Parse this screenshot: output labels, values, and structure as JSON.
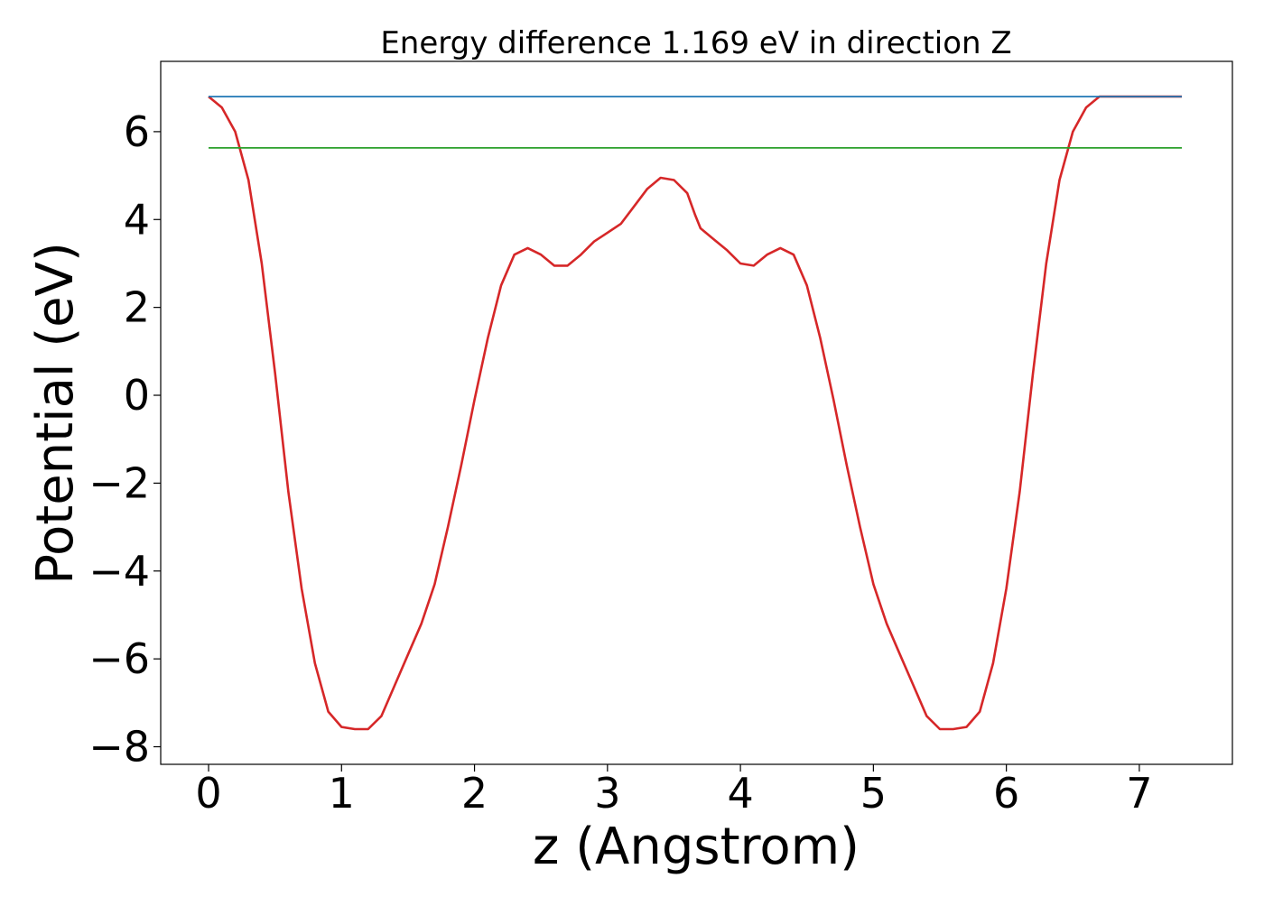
{
  "chart_data": {
    "type": "line",
    "title": "Energy difference 1.169 eV in direction Z",
    "xlabel": "z (Angstrom)",
    "ylabel": "Potential (eV)",
    "xlim": [
      -0.36,
      7.7
    ],
    "ylim": [
      -8.4,
      7.6
    ],
    "xticks": [
      0,
      1,
      2,
      3,
      4,
      5,
      6,
      7
    ],
    "xtick_labels": [
      "0",
      "1",
      "2",
      "3",
      "4",
      "5",
      "6",
      "7"
    ],
    "yticks": [
      -8,
      -6,
      -4,
      -2,
      0,
      2,
      4,
      6
    ],
    "ytick_labels": [
      "−8",
      "−6",
      "−4",
      "−2",
      "0",
      "2",
      "4",
      "6"
    ],
    "grid": false,
    "series": [
      {
        "color": "#d62728",
        "x": [
          0,
          0.1,
          0.2,
          0.3,
          0.4,
          0.5,
          0.6,
          0.7,
          0.8,
          0.9,
          1.0,
          1.1,
          1.2,
          1.3,
          1.4,
          1.5,
          1.6,
          1.7,
          1.8,
          1.9,
          2.0,
          2.1,
          2.2,
          2.3,
          2.4,
          2.5,
          2.6,
          2.7,
          2.8,
          2.9,
          3.0,
          3.1,
          3.2,
          3.3,
          3.4,
          3.5,
          3.6,
          3.66,
          3.7,
          3.8,
          3.9,
          4.0,
          4.1,
          4.2,
          4.3,
          4.4,
          4.5,
          4.6,
          4.7,
          4.8,
          4.9,
          5.0,
          5.1,
          5.2,
          5.3,
          5.4,
          5.5,
          5.6,
          5.7,
          5.8,
          5.9,
          6.0,
          6.1,
          6.2,
          6.3,
          6.4,
          6.5,
          6.6,
          6.7,
          6.8,
          6.9,
          7.0,
          7.1,
          7.2,
          7.32
        ],
        "y": [
          6.8,
          6.55,
          6.0,
          4.9,
          3.0,
          0.5,
          -2.2,
          -4.4,
          -6.1,
          -7.2,
          -7.55,
          -7.6,
          -7.6,
          -7.3,
          -6.6,
          -5.9,
          -5.2,
          -4.3,
          -3.0,
          -1.6,
          -0.1,
          1.3,
          2.5,
          3.2,
          3.35,
          3.2,
          2.95,
          2.95,
          3.2,
          3.5,
          3.7,
          3.9,
          4.3,
          4.7,
          4.95,
          4.9,
          4.6,
          4.1,
          3.8,
          3.55,
          3.3,
          3.0,
          2.95,
          3.2,
          3.35,
          3.2,
          2.5,
          1.3,
          -0.1,
          -1.6,
          -3.0,
          -4.3,
          -5.2,
          -5.9,
          -6.6,
          -7.3,
          -7.6,
          -7.6,
          -7.55,
          -7.2,
          -6.1,
          -4.4,
          -2.2,
          0.5,
          3.0,
          4.9,
          6.0,
          6.55,
          6.8,
          6.8,
          6.8,
          6.8,
          6.8,
          6.8,
          6.8
        ]
      },
      {
        "color": "#1f77b4",
        "x": [
          0,
          7.32
        ],
        "y": [
          6.8,
          6.8
        ]
      },
      {
        "color": "#2ca02c",
        "x": [
          0,
          7.32
        ],
        "y": [
          5.63,
          5.63
        ]
      }
    ]
  }
}
